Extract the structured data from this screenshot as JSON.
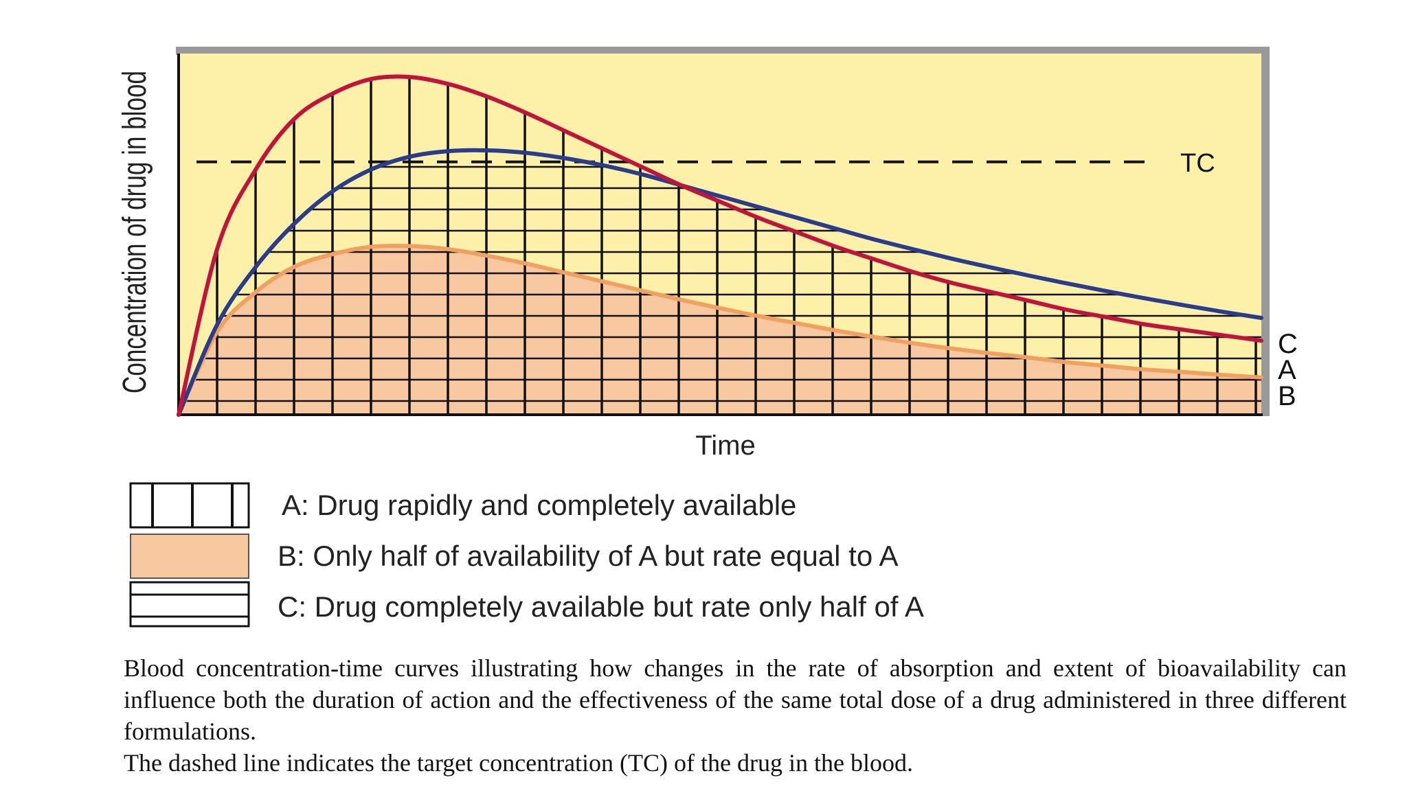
{
  "chart_data": {
    "type": "line",
    "ylabel": "Concentration of drug in blood",
    "xlabel": "Time",
    "xlim": [
      0,
      28
    ],
    "ylim": [
      0,
      100
    ],
    "target_concentration": {
      "label": "TC",
      "value": 70,
      "style": "dashed"
    },
    "series": [
      {
        "name": "A",
        "legend": "A: Drug rapidly and completely available",
        "color": "#c0143c",
        "fill": "vertical-hatch",
        "x": [
          0,
          1,
          2,
          3,
          4,
          5,
          6,
          7,
          8,
          9,
          10,
          11,
          12,
          13,
          14,
          15,
          16,
          17,
          18,
          19,
          20,
          21,
          22,
          23,
          24,
          25,
          26,
          27,
          28
        ],
        "values": [
          0,
          46,
          68,
          82,
          89,
          93,
          93.5,
          91.5,
          88,
          83.5,
          78.5,
          73.5,
          68.5,
          63.5,
          59,
          54.5,
          50.5,
          46.5,
          43,
          39.5,
          36.5,
          34,
          31.5,
          29,
          27,
          25,
          23.5,
          22,
          20.5
        ]
      },
      {
        "name": "B",
        "legend": "B: Only half of availability of A but rate equal to A",
        "color": "#f0a060",
        "fill": "#f8c8a0",
        "x": [
          0,
          1,
          2,
          3,
          4,
          5,
          6,
          7,
          8,
          9,
          10,
          11,
          12,
          13,
          14,
          15,
          16,
          17,
          18,
          19,
          20,
          21,
          22,
          23,
          24,
          25,
          26,
          27,
          28
        ],
        "values": [
          0,
          23,
          34,
          41,
          44.5,
          46.5,
          46.7,
          45.8,
          44,
          41.8,
          39.3,
          36.8,
          34.3,
          31.8,
          29.5,
          27.3,
          25.3,
          23.3,
          21.5,
          19.8,
          18.3,
          17,
          15.8,
          14.5,
          13.5,
          12.5,
          11.8,
          11,
          10.3
        ]
      },
      {
        "name": "C",
        "legend": "C: Drug completely available but rate only half of A",
        "color": "#2a3c8c",
        "fill": "horizontal-hatch",
        "x": [
          0,
          1,
          2,
          3,
          4,
          5,
          6,
          7,
          8,
          9,
          10,
          11,
          12,
          13,
          14,
          15,
          16,
          17,
          18,
          19,
          20,
          21,
          22,
          23,
          24,
          25,
          26,
          27,
          28
        ],
        "values": [
          0,
          25,
          41,
          53,
          62,
          68,
          71.5,
          73,
          73.2,
          72.5,
          71,
          69,
          66.5,
          63.5,
          60.5,
          57.5,
          54.5,
          51.5,
          48.5,
          45.8,
          43.2,
          40.8,
          38.5,
          36.3,
          34.2,
          32.2,
          30.3,
          28.5,
          26.8
        ]
      }
    ],
    "grid": false,
    "legend_position": "bottom"
  },
  "caption": {
    "line1": "Blood concentration-time curves illustrating how changes in the rate of absorption and extent of bioavailability can influence both the duration of action and the effectiveness of the same total dose of a drug administered in three different formulations.",
    "line2": "The dashed line indicates the target concentration (TC) of the drug in the blood."
  },
  "colors": {
    "plot_background": "#fdf0a8",
    "frame": "#999999"
  }
}
